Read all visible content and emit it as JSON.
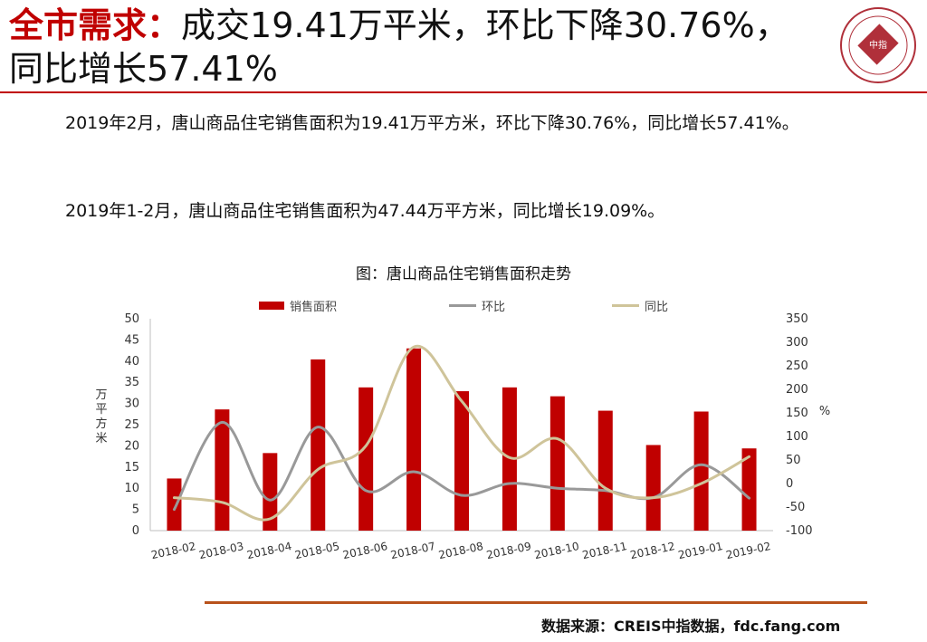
{
  "header": {
    "title_highlight": "全市需求：",
    "title_rest_line1": "成交19.41万平米，环比下降30.76%，",
    "title_line2": "同比增长57.41%",
    "logo_text": "中指"
  },
  "body": {
    "paragraph1": "2019年2月，唐山商品住宅销售面积为19.41万平方米，环比下降30.76%，同比增长57.41%。",
    "paragraph2": "2019年1-2月，唐山商品住宅销售面积为47.44万平方米，同比增长19.09%。"
  },
  "chart_data": {
    "type": "bar",
    "title": "图：唐山商品住宅销售面积走势",
    "categories": [
      "2018-02",
      "2018-03",
      "2018-04",
      "2018-05",
      "2018-06",
      "2018-07",
      "2018-08",
      "2018-09",
      "2018-10",
      "2018-11",
      "2018-12",
      "2019-01",
      "2019-02"
    ],
    "series": [
      {
        "name": "销售面积",
        "type": "bar",
        "axis": "left",
        "color": "#c00000",
        "values": [
          12.3,
          28.6,
          18.3,
          40.4,
          33.8,
          43.0,
          32.9,
          33.8,
          31.7,
          28.3,
          20.2,
          28.1,
          19.4
        ]
      },
      {
        "name": "环比",
        "type": "line",
        "axis": "right",
        "color": "#999999",
        "values": [
          -55,
          130,
          -35,
          120,
          -15,
          25,
          -25,
          0,
          -10,
          -15,
          -30,
          40,
          -31
        ]
      },
      {
        "name": "同比",
        "type": "line",
        "axis": "right",
        "color": "#cfc49a",
        "values": [
          -30,
          -40,
          -75,
          30,
          80,
          290,
          175,
          55,
          95,
          -10,
          -30,
          0,
          57
        ]
      }
    ],
    "ylabel": "万平方米",
    "ylabel_right": "%",
    "ylim": [
      0,
      50
    ],
    "ylim_right": [
      -100,
      350
    ],
    "yticks": [
      0,
      5,
      10,
      15,
      20,
      25,
      30,
      35,
      40,
      45,
      50
    ],
    "yticks_right": [
      -100,
      -50,
      0,
      50,
      100,
      150,
      200,
      250,
      300,
      350
    ],
    "legend_position": "top"
  },
  "footer": {
    "source": "数据来源：CREIS中指数据，fdc.fang.com"
  }
}
